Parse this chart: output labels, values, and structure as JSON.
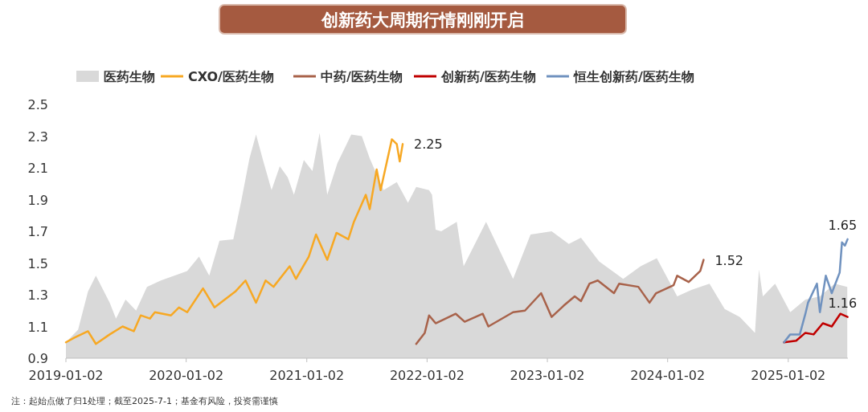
{
  "chart_data": {
    "type": "line",
    "title": "创新药大周期行情刚刚开启",
    "xlim": [
      "2019-01-02",
      "2025-07-02"
    ],
    "xticks": [
      "2019-01-02",
      "2020-01-02",
      "2021-01-02",
      "2022-01-02",
      "2023-01-02",
      "2024-01-02",
      "2025-01-02"
    ],
    "ylim": [
      0.9,
      2.5
    ],
    "yticks": [
      0.9,
      1.1,
      1.3,
      1.5,
      1.7,
      1.9,
      2.1,
      2.3,
      2.5
    ],
    "grid": false,
    "legend": "top",
    "marker": "none",
    "line_style": "solid",
    "series": [
      {
        "name": "医药生物",
        "type": "area",
        "color": "#d9d9d9",
        "x": [
          "2019-01-02",
          "2019-02-08",
          "2019-03-10",
          "2019-04-03",
          "2019-05-15",
          "2019-06-03",
          "2019-07-02",
          "2019-08-03",
          "2019-09-05",
          "2019-10-17",
          "2019-11-27",
          "2020-01-05",
          "2020-02-10",
          "2020-03-12",
          "2020-04-12",
          "2020-05-24",
          "2020-06-17",
          "2020-07-12",
          "2020-08-01",
          "2020-08-22",
          "2020-09-17",
          "2020-10-12",
          "2020-11-05",
          "2020-11-24",
          "2020-12-24",
          "2021-01-19",
          "2021-02-10",
          "2021-03-05",
          "2021-04-05",
          "2021-05-17",
          "2021-06-18",
          "2021-07-12",
          "2021-08-23",
          "2021-10-02",
          "2021-11-05",
          "2021-11-30",
          "2022-01-08",
          "2022-01-17",
          "2022-01-28",
          "2022-02-14",
          "2022-04-02",
          "2022-04-23",
          "2022-06-30",
          "2022-09-20",
          "2022-11-12",
          "2023-01-15",
          "2023-03-08",
          "2023-04-14",
          "2023-06-08",
          "2023-08-20",
          "2023-10-12",
          "2023-11-30",
          "2024-01-31",
          "2024-03-14",
          "2024-05-08",
          "2024-06-23",
          "2024-08-08",
          "2024-09-23",
          "2024-10-05",
          "2024-10-17",
          "2024-11-23",
          "2025-01-08",
          "2025-02-23",
          "2025-04-08",
          "2025-05-23",
          "2025-06-30"
        ],
        "values": [
          1.0,
          1.08,
          1.32,
          1.42,
          1.25,
          1.15,
          1.27,
          1.2,
          1.35,
          1.39,
          1.42,
          1.45,
          1.54,
          1.42,
          1.64,
          1.65,
          1.89,
          2.16,
          2.31,
          2.15,
          1.96,
          2.11,
          2.04,
          1.93,
          2.15,
          2.08,
          2.32,
          1.93,
          2.13,
          2.31,
          2.3,
          2.16,
          1.96,
          2.01,
          1.88,
          1.98,
          1.96,
          1.93,
          1.71,
          1.7,
          1.76,
          1.48,
          1.76,
          1.4,
          1.68,
          1.7,
          1.62,
          1.66,
          1.51,
          1.4,
          1.48,
          1.53,
          1.29,
          1.33,
          1.37,
          1.21,
          1.16,
          1.06,
          1.46,
          1.29,
          1.37,
          1.19,
          1.27,
          1.29,
          1.37,
          1.35
        ]
      },
      {
        "name": "CXO/医药生物",
        "color": "#f7a823",
        "x": [
          "2019-01-02",
          "2019-01-28",
          "2019-03-10",
          "2019-04-03",
          "2019-05-15",
          "2019-06-23",
          "2019-07-27",
          "2019-08-17",
          "2019-09-14",
          "2019-09-29",
          "2019-11-17",
          "2019-12-11",
          "2020-01-05",
          "2020-02-22",
          "2020-03-28",
          "2020-05-30",
          "2020-06-30",
          "2020-08-01",
          "2020-08-30",
          "2020-09-23",
          "2020-11-11",
          "2020-11-30",
          "2021-01-08",
          "2021-01-30",
          "2021-03-05",
          "2021-04-02",
          "2021-05-08",
          "2021-05-25",
          "2021-06-30",
          "2021-07-12",
          "2021-08-02",
          "2021-08-14",
          "2021-09-17",
          "2021-10-02",
          "2021-10-11",
          "2021-10-20"
        ],
        "values": [
          1.0,
          1.03,
          1.07,
          0.99,
          1.05,
          1.1,
          1.07,
          1.17,
          1.15,
          1.19,
          1.17,
          1.22,
          1.19,
          1.34,
          1.22,
          1.32,
          1.39,
          1.25,
          1.39,
          1.35,
          1.48,
          1.4,
          1.54,
          1.68,
          1.52,
          1.69,
          1.65,
          1.76,
          1.93,
          1.84,
          2.09,
          1.96,
          2.28,
          2.25,
          2.14,
          2.25
        ]
      },
      {
        "name": "中药/医药生物",
        "color": "#a8624a",
        "x": [
          "2021-11-30",
          "2021-12-26",
          "2022-01-08",
          "2022-01-28",
          "2022-03-30",
          "2022-04-26",
          "2022-06-20",
          "2022-07-07",
          "2022-09-20",
          "2022-10-26",
          "2022-12-14",
          "2023-01-15",
          "2023-02-20",
          "2023-03-26",
          "2023-04-14",
          "2023-05-10",
          "2023-06-04",
          "2023-07-23",
          "2023-08-08",
          "2023-10-05",
          "2023-11-08",
          "2023-11-28",
          "2024-01-20",
          "2024-01-31",
          "2024-03-06",
          "2024-04-10",
          "2024-04-20"
        ],
        "values": [
          0.99,
          1.06,
          1.17,
          1.12,
          1.18,
          1.13,
          1.18,
          1.1,
          1.19,
          1.2,
          1.31,
          1.16,
          1.23,
          1.29,
          1.26,
          1.37,
          1.39,
          1.31,
          1.37,
          1.35,
          1.25,
          1.31,
          1.36,
          1.42,
          1.38,
          1.45,
          1.52
        ]
      },
      {
        "name": "创新药/医药生物",
        "color": "#c00000",
        "x": [
          "2024-12-20",
          "2025-01-26",
          "2025-02-23",
          "2025-03-20",
          "2025-04-17",
          "2025-05-14",
          "2025-06-09",
          "2025-07-01"
        ],
        "values": [
          1.0,
          1.01,
          1.06,
          1.05,
          1.12,
          1.1,
          1.18,
          1.16
        ]
      },
      {
        "name": "恒生创新药/医药生物",
        "color": "#7092bf",
        "x": [
          "2024-12-20",
          "2025-01-08",
          "2025-02-06",
          "2025-02-23",
          "2025-03-03",
          "2025-03-30",
          "2025-04-08",
          "2025-04-26",
          "2025-05-14",
          "2025-06-07",
          "2025-06-14",
          "2025-06-23",
          "2025-07-01"
        ],
        "values": [
          1.0,
          1.05,
          1.05,
          1.18,
          1.25,
          1.37,
          1.19,
          1.42,
          1.31,
          1.44,
          1.63,
          1.61,
          1.65
        ]
      }
    ],
    "annotations": [
      {
        "text": "2.25",
        "x": "2021-10-20",
        "y": 2.25
      },
      {
        "text": "1.52",
        "x": "2024-04-20",
        "y": 1.52
      },
      {
        "text": "1.65",
        "x": "2025-07-01",
        "y": 1.65
      },
      {
        "text": "1.16",
        "x": "2025-07-01",
        "y": 1.16
      },
      "注：起始点做了归1处理；截至2025-7-1；基金有风险，投资需谨慎"
    ]
  }
}
